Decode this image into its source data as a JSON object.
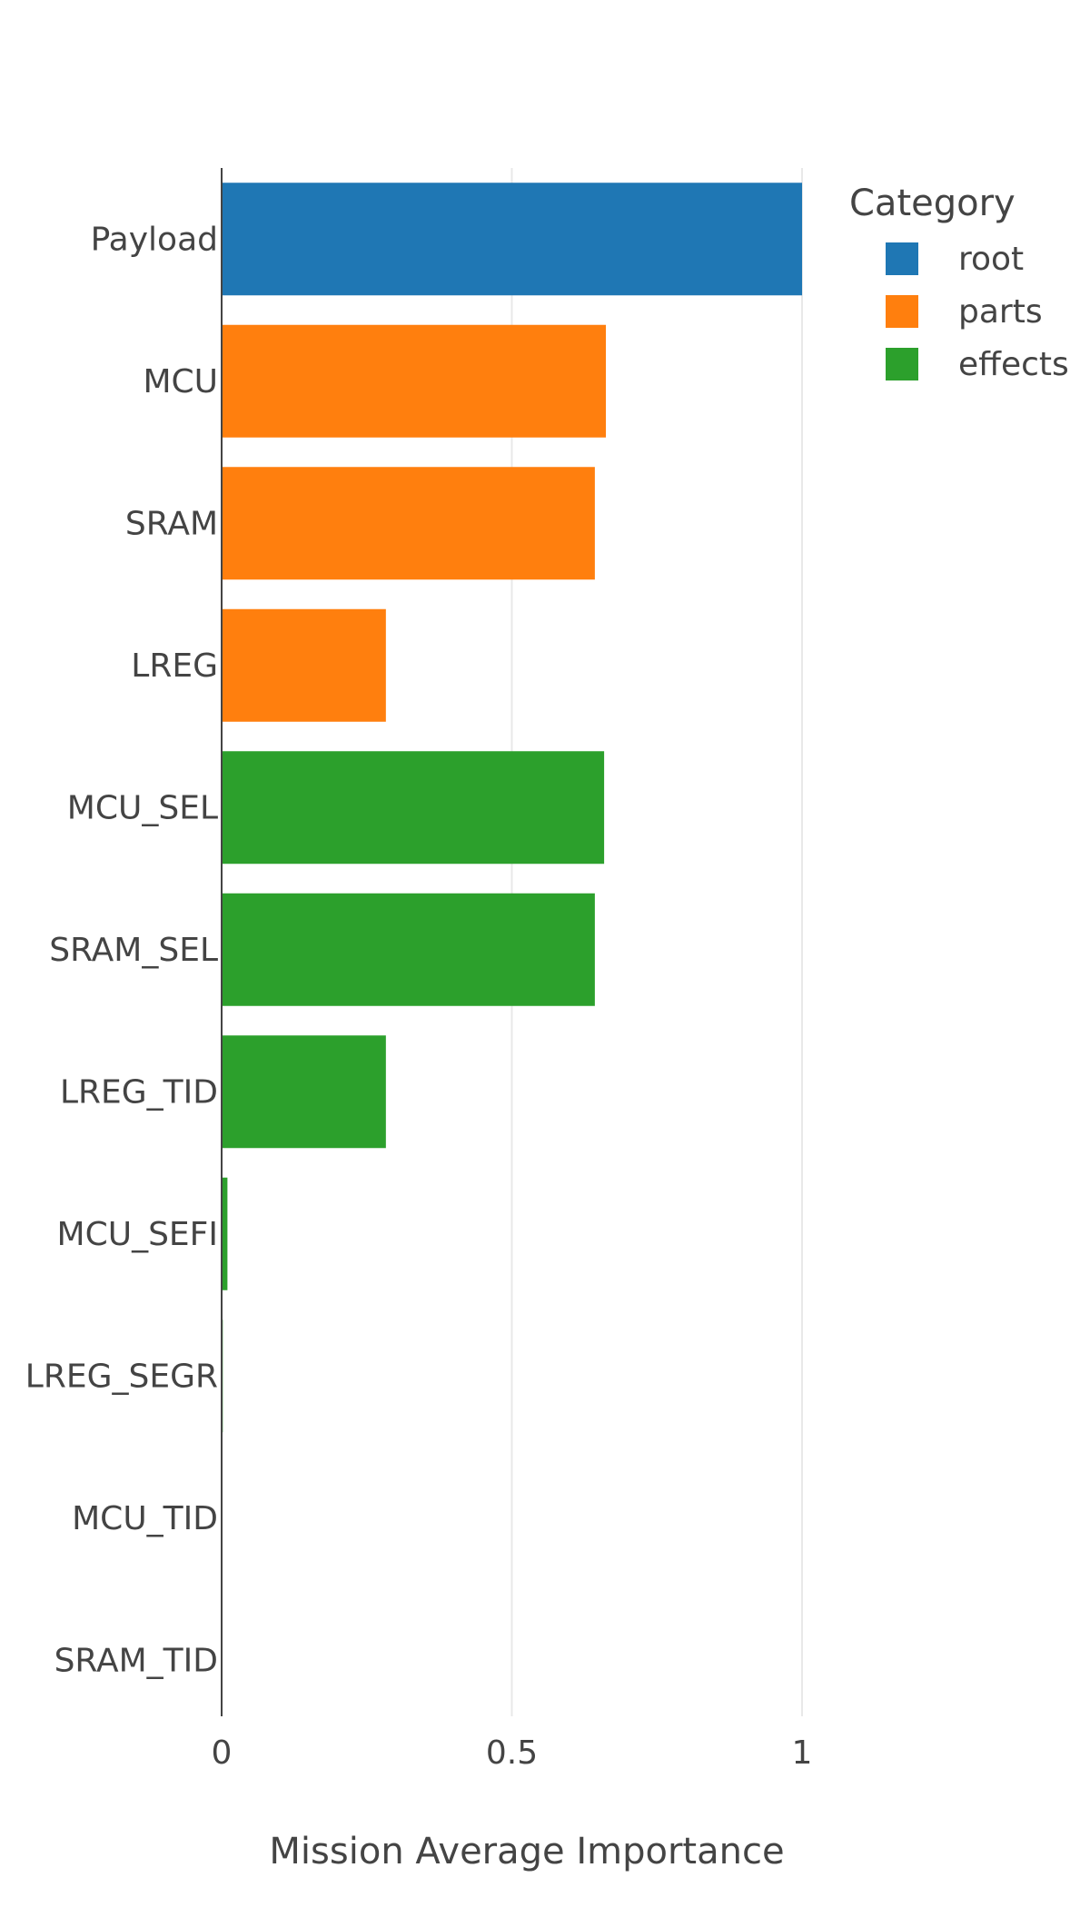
{
  "chart_data": {
    "type": "bar",
    "orientation": "horizontal",
    "title": "",
    "xlabel": "Mission Average Importance",
    "ylabel": "",
    "xlim": [
      0,
      1
    ],
    "xticks": [
      0,
      0.5,
      1
    ],
    "xtick_labels": [
      "0",
      "0.5",
      "1"
    ],
    "grid": "vertical",
    "legend_title": "Category",
    "legend_position": "top-right",
    "categories": [
      "Payload",
      "MCU",
      "SRAM",
      "LREG",
      "MCU_SEL",
      "SRAM_SEL",
      "LREG_TID",
      "MCU_SEFI",
      "LREG_SEGR",
      "MCU_TID",
      "SRAM_TID"
    ],
    "bar_category": [
      "root",
      "parts",
      "parts",
      "parts",
      "effects",
      "effects",
      "effects",
      "effects",
      "effects",
      "effects",
      "effects"
    ],
    "values": [
      1.0,
      0.662,
      0.643,
      0.283,
      0.659,
      0.643,
      0.283,
      0.01,
      0.002,
      0.0,
      0.0
    ],
    "series": [
      {
        "name": "root",
        "color": "#1f77b4"
      },
      {
        "name": "parts",
        "color": "#ff7f0e"
      },
      {
        "name": "effects",
        "color": "#2ca02c"
      }
    ]
  }
}
